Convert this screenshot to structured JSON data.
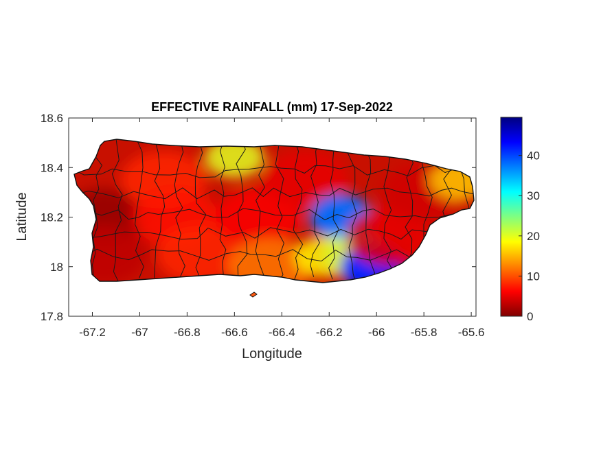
{
  "figure": {
    "title": "EFFECTIVE RAINFALL (mm) 17-Sep-2022",
    "xlabel": "Longitude",
    "ylabel": "Latitude"
  },
  "axes": {
    "xlim": [
      -67.3,
      -65.58
    ],
    "ylim": [
      17.8,
      18.6
    ],
    "xticks": [
      -67.2,
      -67,
      -66.8,
      -66.6,
      -66.4,
      -66.2,
      -66,
      -65.8,
      -65.6
    ],
    "xtick_labels": [
      "-67.2",
      "-67",
      "-66.8",
      "-66.6",
      "-66.4",
      "-66.2",
      "-66",
      "-65.8",
      "-65.6"
    ],
    "yticks": [
      17.8,
      18,
      18.2,
      18.4,
      18.6
    ],
    "ytick_labels": [
      "17.8",
      "18",
      "18.2",
      "18.4",
      "18.6"
    ]
  },
  "colorbar": {
    "min": 0,
    "max": 49.5,
    "ticks": [
      0,
      10,
      20,
      30,
      40
    ],
    "tick_labels": [
      "0",
      "10",
      "20",
      "30",
      "40"
    ],
    "colormap": "jet-reversed",
    "colors": [
      "#800000",
      "#ff0000",
      "#ff8000",
      "#ffff00",
      "#80ff80",
      "#00ffff",
      "#0080ff",
      "#0000ff",
      "#000080"
    ]
  },
  "chart_data": {
    "type": "heatmap",
    "title": "EFFECTIVE RAINFALL (mm) 17-Sep-2022",
    "xlabel": "Longitude",
    "ylabel": "Latitude",
    "xlim": [
      -67.3,
      -65.58
    ],
    "ylim": [
      17.8,
      18.6
    ],
    "value_range": [
      0,
      49.5
    ],
    "units": "mm",
    "grid": false,
    "colorbar_position": "right",
    "regions": [
      {
        "lon": -67.15,
        "lat": 18.2,
        "value": 1
      },
      {
        "lon": -67.15,
        "lat": 18.05,
        "value": 3
      },
      {
        "lon": -66.9,
        "lat": 18.35,
        "value": 8
      },
      {
        "lon": -66.85,
        "lat": 18.2,
        "value": 7
      },
      {
        "lon": -66.75,
        "lat": 18.05,
        "value": 8
      },
      {
        "lon": -66.6,
        "lat": 18.44,
        "value": 20
      },
      {
        "lon": -66.5,
        "lat": 18.2,
        "value": 6
      },
      {
        "lon": -66.45,
        "lat": 18.0,
        "value": 12
      },
      {
        "lon": -66.3,
        "lat": 18.35,
        "value": 5
      },
      {
        "lon": -66.15,
        "lat": 18.2,
        "value": 38
      },
      {
        "lon": -66.1,
        "lat": 18.05,
        "value": 32
      },
      {
        "lon": -66.22,
        "lat": 18.04,
        "value": 18
      },
      {
        "lon": -66.02,
        "lat": 18.0,
        "value": 42
      },
      {
        "lon": -65.95,
        "lat": 18.12,
        "value": 5
      },
      {
        "lon": -65.8,
        "lat": 18.3,
        "value": 4
      },
      {
        "lon": -65.65,
        "lat": 18.35,
        "value": 16
      }
    ]
  }
}
